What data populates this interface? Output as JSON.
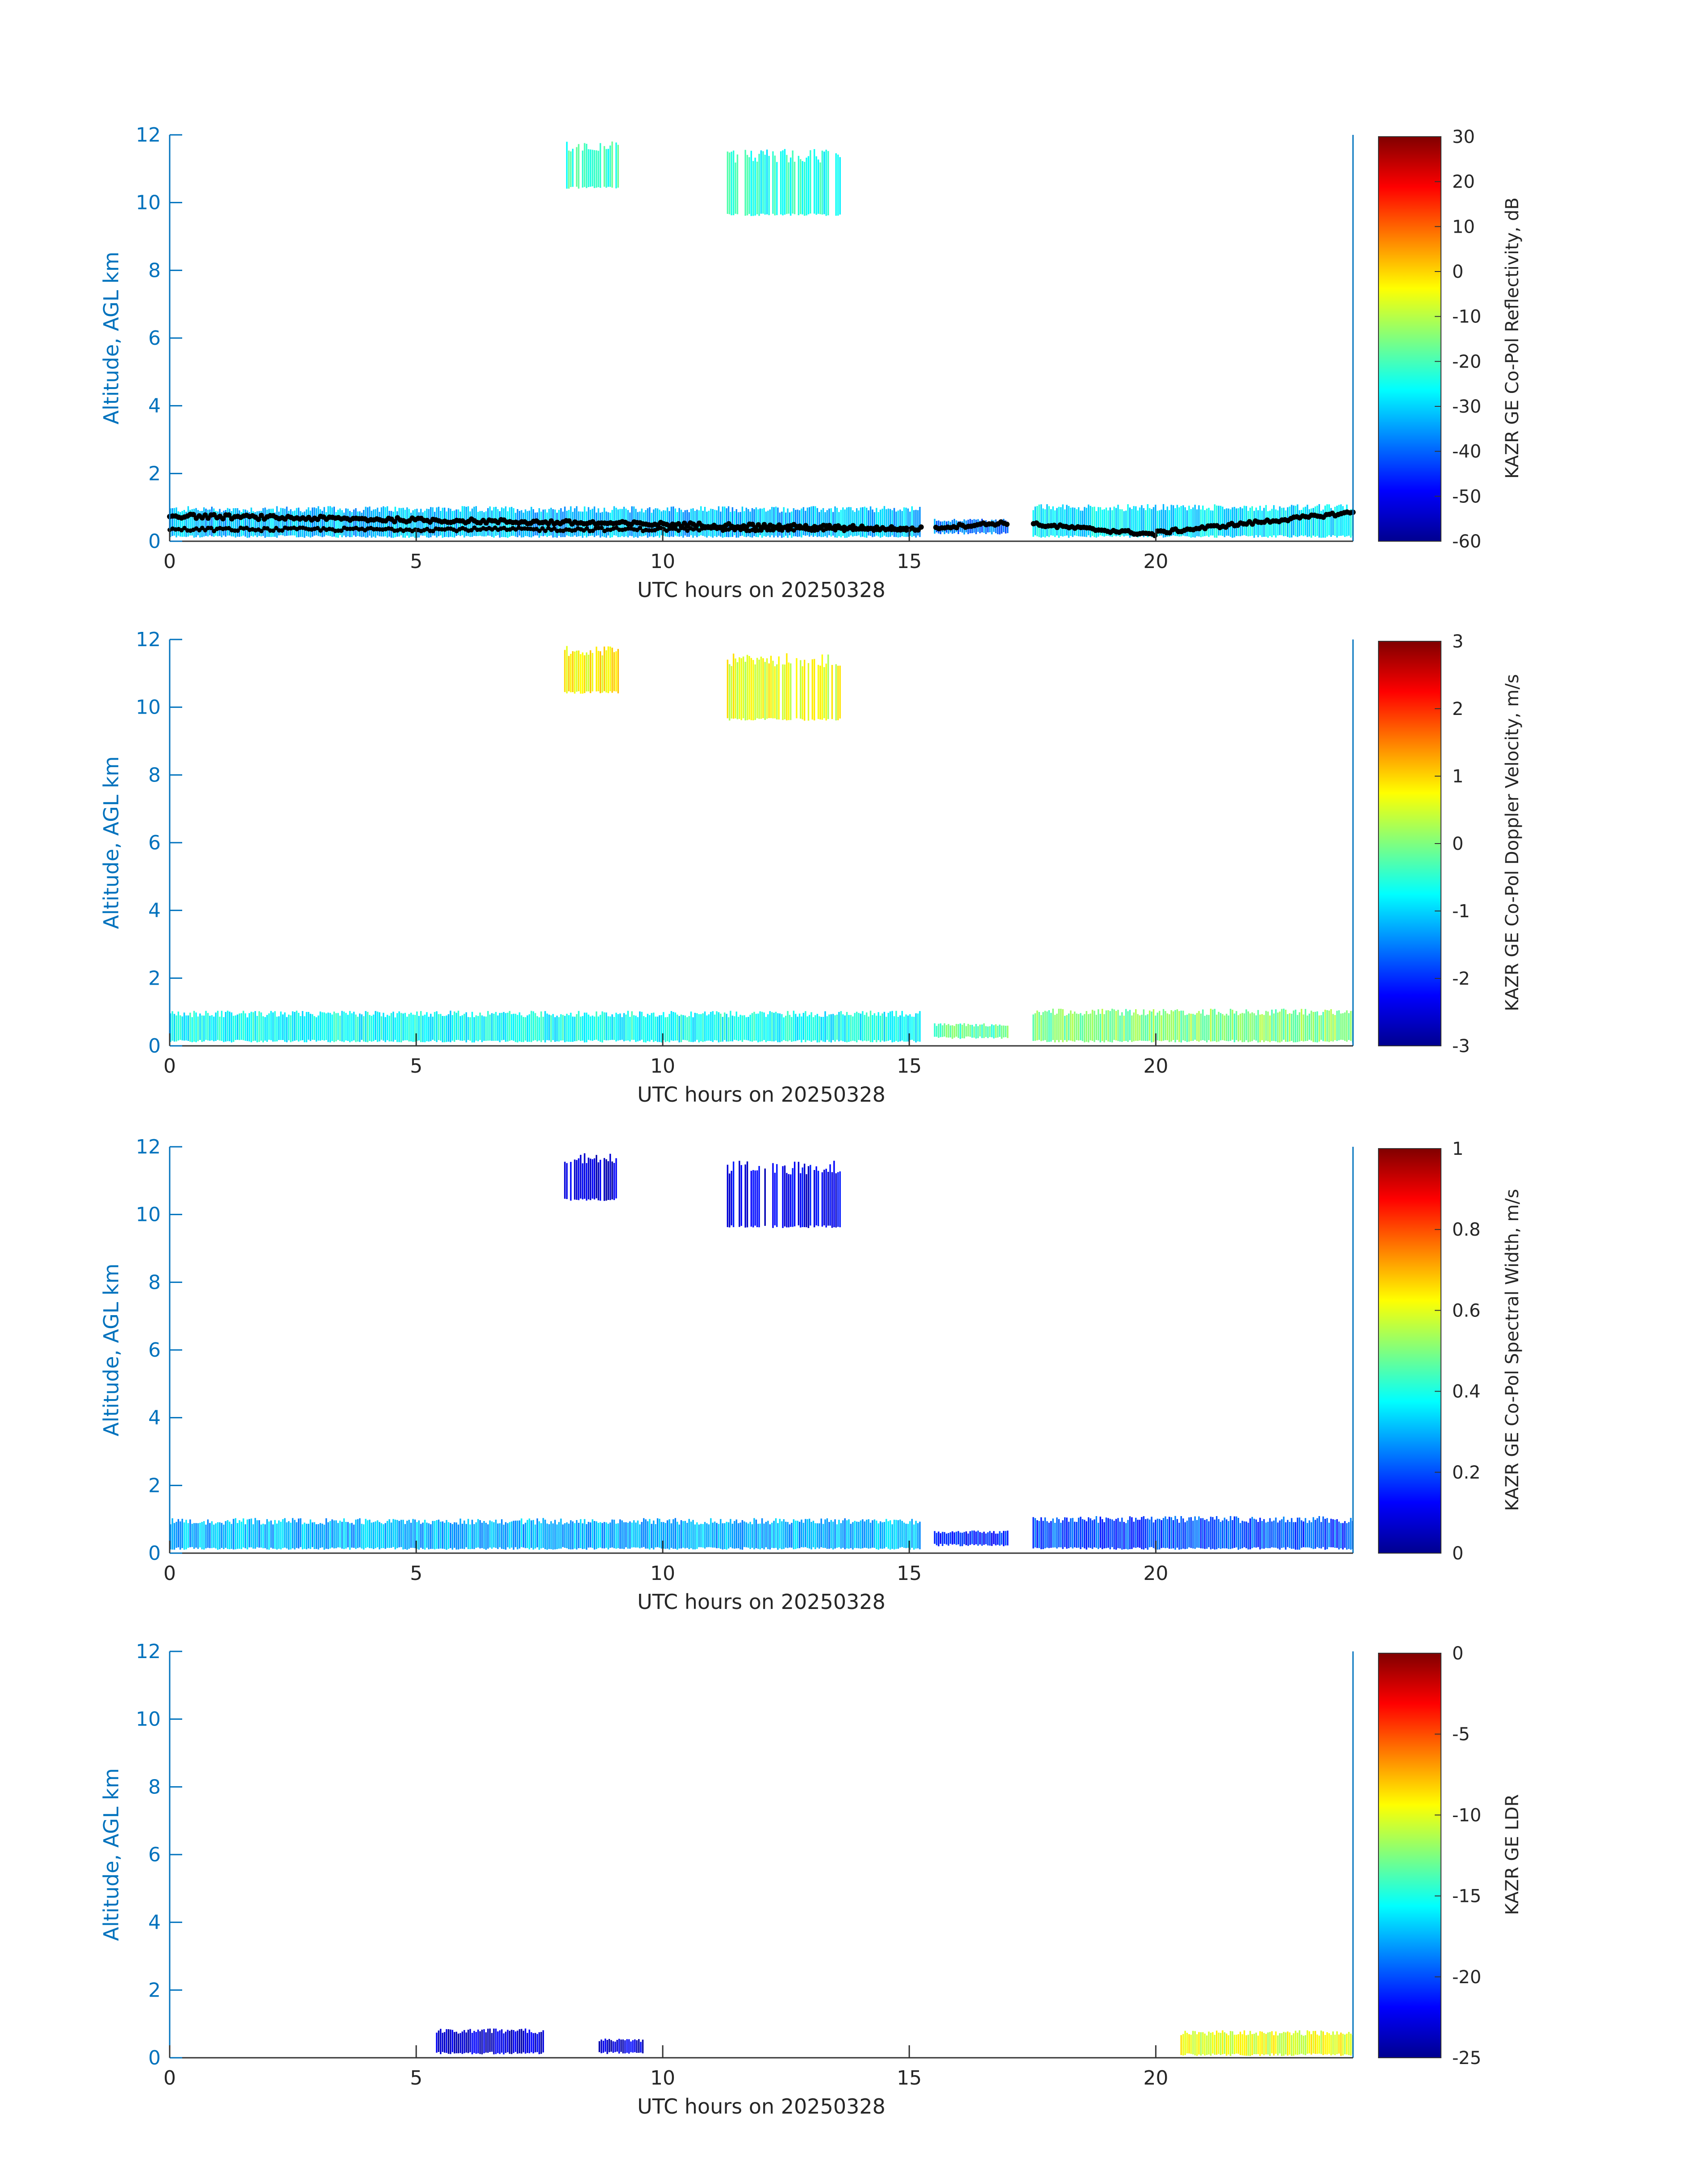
{
  "chart_data": [
    {
      "type": "heatmap",
      "xlabel": "UTC hours on 20250328",
      "ylabel": "Altitude, AGL km",
      "xlim": [
        0,
        24
      ],
      "ylim": [
        0,
        12
      ],
      "xticks": [
        0,
        5,
        10,
        15,
        20
      ],
      "yticks": [
        0,
        2,
        4,
        6,
        8,
        10,
        12
      ],
      "colorbar": {
        "label": "KAZR GE Co-Pol Reflectivity, dB",
        "range": [
          -60,
          30
        ],
        "ticks": [
          30,
          20,
          10,
          0,
          -10,
          -20,
          -30,
          -40,
          -50,
          -60
        ],
        "colormap": "jet"
      },
      "overlay": "cloud base points (black)",
      "features": [
        {
          "x": [
            0,
            15.2
          ],
          "y": [
            0.1,
            0.9
          ],
          "level": -32
        },
        {
          "x": [
            15.5,
            17.0
          ],
          "y": [
            0.2,
            0.6
          ],
          "level": -38
        },
        {
          "x": [
            17.5,
            24
          ],
          "y": [
            0.1,
            0.95
          ],
          "level": -28
        },
        {
          "x": [
            8.0,
            9.1
          ],
          "y": [
            10.4,
            11.6
          ],
          "level": -22
        },
        {
          "x": [
            11.3,
            13.6
          ],
          "y": [
            9.6,
            11.3
          ],
          "level": -24
        }
      ]
    },
    {
      "type": "heatmap",
      "xlabel": "UTC hours on 20250328",
      "ylabel": "Altitude, AGL km",
      "xlim": [
        0,
        24
      ],
      "ylim": [
        0,
        12
      ],
      "xticks": [
        0,
        5,
        10,
        15,
        20
      ],
      "yticks": [
        0,
        2,
        4,
        6,
        8,
        10,
        12
      ],
      "colorbar": {
        "label": "KAZR GE Co-Pol Doppler Velocity, m/s",
        "range": [
          -3,
          3
        ],
        "ticks": [
          3,
          2,
          1,
          0,
          -1,
          -2,
          -3
        ],
        "colormap": "jet"
      },
      "features": [
        {
          "x": [
            0,
            15.2
          ],
          "y": [
            0.1,
            0.9
          ],
          "level": -0.7
        },
        {
          "x": [
            15.5,
            17.0
          ],
          "y": [
            0.2,
            0.6
          ],
          "level": -0.2
        },
        {
          "x": [
            17.5,
            24
          ],
          "y": [
            0.1,
            0.95
          ],
          "level": 0.0
        },
        {
          "x": [
            8.0,
            9.1
          ],
          "y": [
            10.4,
            11.6
          ],
          "level": 0.8
        },
        {
          "x": [
            11.3,
            13.6
          ],
          "y": [
            9.6,
            11.3
          ],
          "level": 0.6
        }
      ]
    },
    {
      "type": "heatmap",
      "xlabel": "UTC hours on 20250328",
      "ylabel": "Altitude, AGL km",
      "xlim": [
        0,
        24
      ],
      "ylim": [
        0,
        12
      ],
      "xticks": [
        0,
        5,
        10,
        15,
        20
      ],
      "yticks": [
        0,
        2,
        4,
        6,
        8,
        10,
        12
      ],
      "colorbar": {
        "label": "KAZR GE Co-Pol Spectral Width, m/s",
        "range": [
          0,
          1
        ],
        "ticks": [
          1,
          0.8,
          0.6,
          0.4,
          0.2,
          0
        ],
        "colormap": "jet"
      },
      "features": [
        {
          "x": [
            0,
            15.2
          ],
          "y": [
            0.1,
            0.9
          ],
          "level": 0.3
        },
        {
          "x": [
            15.5,
            17.0
          ],
          "y": [
            0.2,
            0.6
          ],
          "level": 0.15
        },
        {
          "x": [
            17.5,
            24
          ],
          "y": [
            0.1,
            0.95
          ],
          "level": 0.2
        },
        {
          "x": [
            8.0,
            9.1
          ],
          "y": [
            10.4,
            11.6
          ],
          "level": 0.08
        },
        {
          "x": [
            11.3,
            13.6
          ],
          "y": [
            9.6,
            11.3
          ],
          "level": 0.1
        }
      ]
    },
    {
      "type": "heatmap",
      "xlabel": "UTC hours on 20250328",
      "ylabel": "Altitude, AGL km",
      "xlim": [
        0,
        24
      ],
      "ylim": [
        0,
        12
      ],
      "xticks": [
        0,
        5,
        10,
        15,
        20
      ],
      "yticks": [
        0,
        2,
        4,
        6,
        8,
        10,
        12
      ],
      "colorbar": {
        "label": "KAZR GE LDR",
        "range": [
          -25,
          0
        ],
        "ticks": [
          0,
          -5,
          -10,
          -15,
          -20,
          -25
        ],
        "colormap": "jet"
      },
      "features": [
        {
          "x": [
            5.4,
            7.6
          ],
          "y": [
            0.1,
            0.75
          ],
          "level": -23
        },
        {
          "x": [
            8.7,
            9.6
          ],
          "y": [
            0.1,
            0.5
          ],
          "level": -23
        },
        {
          "x": [
            20.5,
            24
          ],
          "y": [
            0.05,
            0.7
          ],
          "level": -10
        }
      ]
    }
  ],
  "axis_color": "#0072BD"
}
